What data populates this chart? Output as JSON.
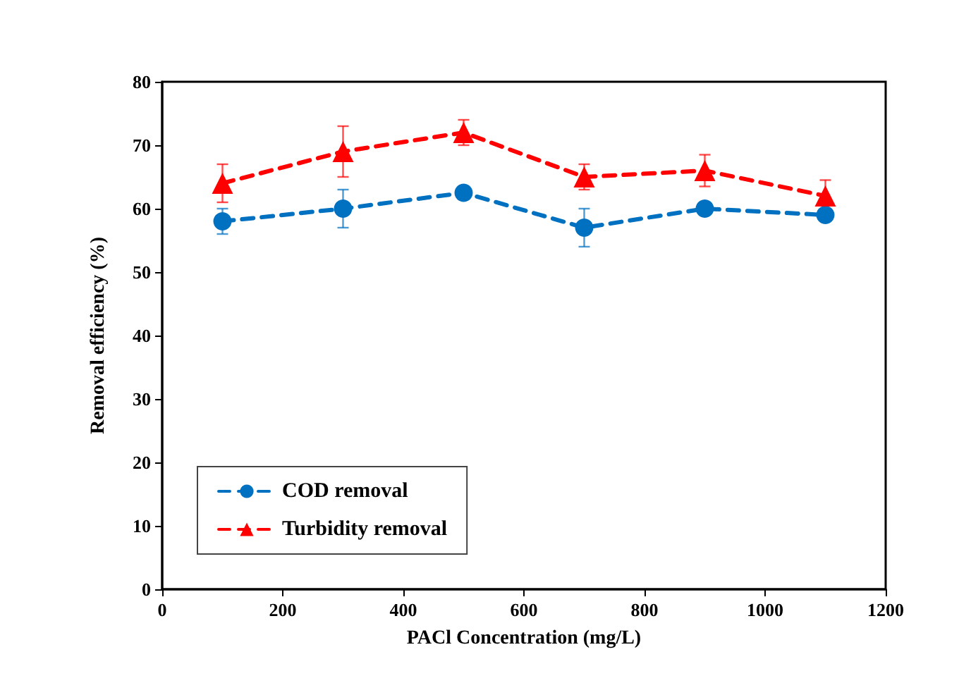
{
  "chart_data": {
    "type": "line",
    "xlabel": "PACl Concentration (mg/L)",
    "ylabel": "Removal efficiency (%)",
    "x": [
      100,
      300,
      500,
      700,
      900,
      1100
    ],
    "series": [
      {
        "name": "COD removal",
        "color": "#0070c0",
        "marker": "circle",
        "values": [
          58,
          60,
          62.5,
          57,
          60,
          59
        ],
        "errors": [
          2,
          3,
          1,
          3,
          1,
          1
        ]
      },
      {
        "name": "Turbidity removal",
        "color": "#ff0000",
        "marker": "triangle",
        "values": [
          64,
          69,
          72,
          65,
          66,
          62
        ],
        "errors": [
          3,
          4,
          2,
          2,
          2.5,
          2.5
        ]
      }
    ],
    "xlim": [
      0,
      1200
    ],
    "xticks": [
      0,
      200,
      400,
      600,
      800,
      1000,
      1200
    ],
    "ylim": [
      0,
      80
    ],
    "yticks": [
      0,
      10,
      20,
      30,
      40,
      50,
      60,
      70,
      80
    ],
    "grid": false,
    "legend": "bottom left",
    "line_style": "dashed"
  }
}
